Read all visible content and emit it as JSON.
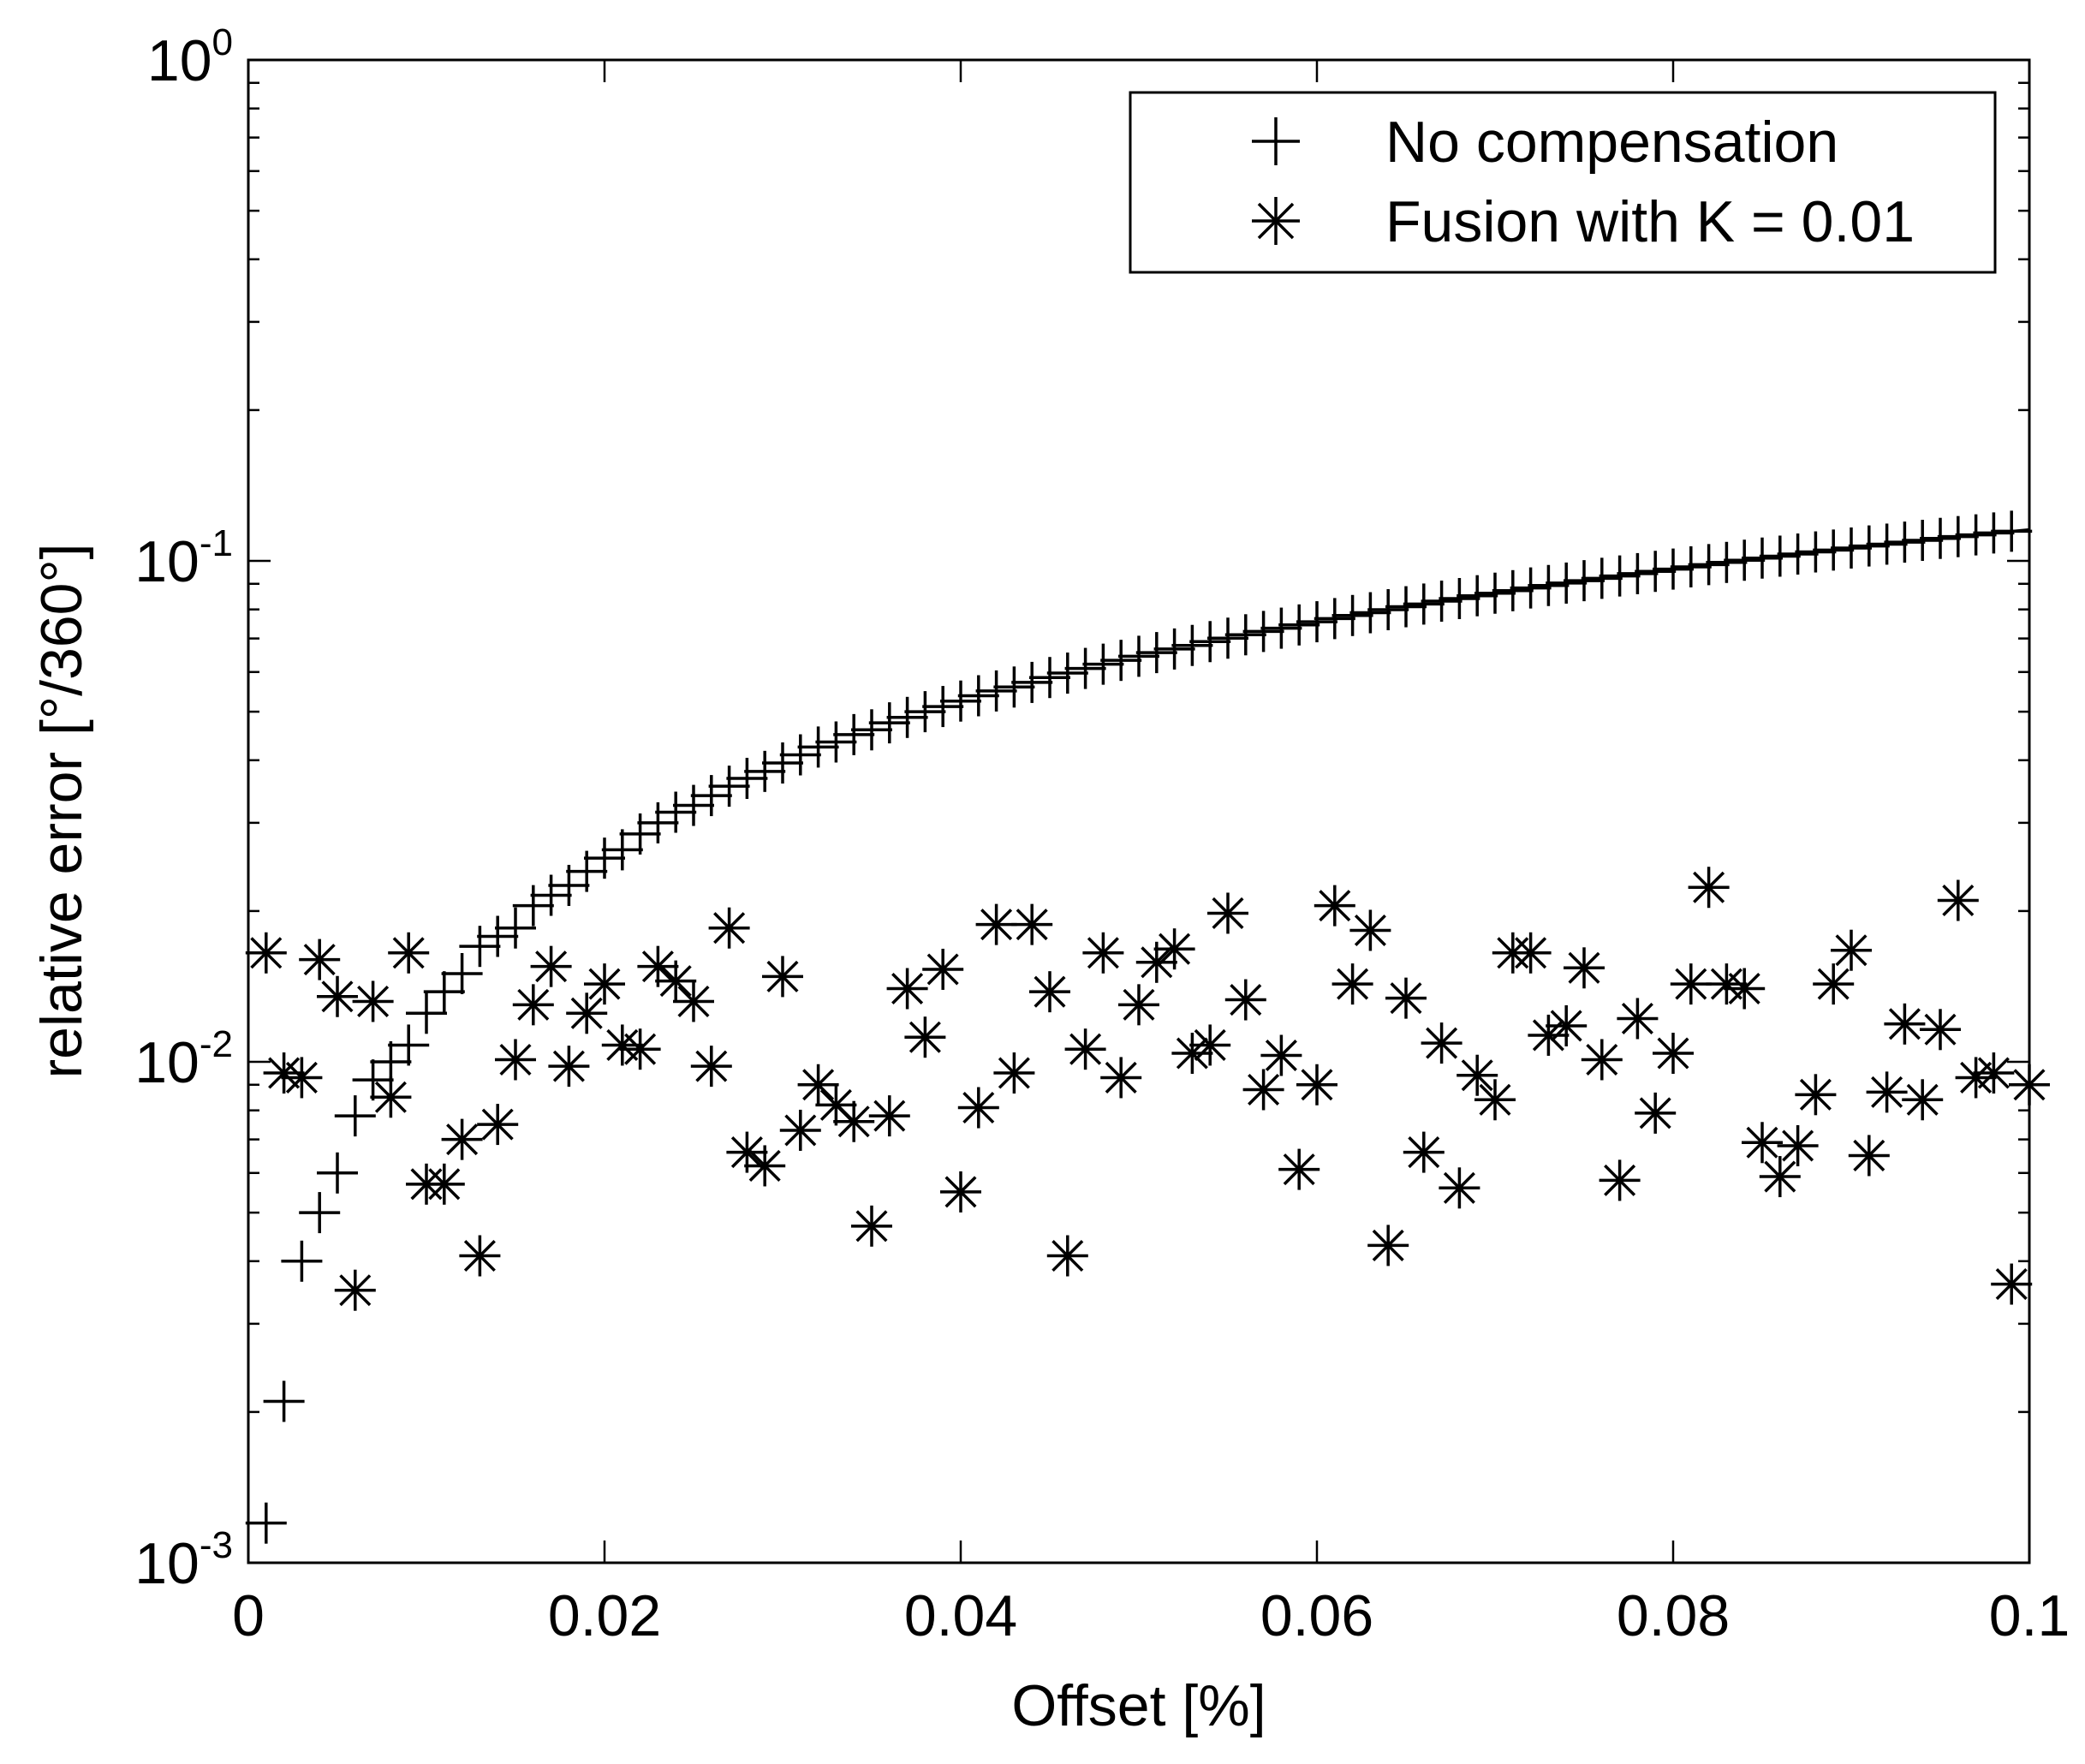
{
  "chart_data": {
    "type": "scatter",
    "title": "",
    "xlabel": "Offset [%]",
    "ylabel": "relative error [°/360°]",
    "xlim": [
      0,
      0.1
    ],
    "ylim": [
      0.001,
      1
    ],
    "yscale": "log",
    "grid": false,
    "legend_position": "top-right",
    "x_ticks": [
      0,
      0.02,
      0.04,
      0.06,
      0.08,
      0.1
    ],
    "x_tick_labels": [
      "0",
      "0.02",
      "0.04",
      "0.06",
      "0.08",
      "0.1"
    ],
    "y_tick_labels": [
      {
        "base": "10",
        "exp": "0"
      },
      {
        "base": "10",
        "exp": "-1"
      },
      {
        "base": "10",
        "exp": "-2"
      },
      {
        "base": "10",
        "exp": "-3"
      }
    ],
    "series": [
      {
        "name": "No compensation",
        "marker": "plus",
        "x": [
          0.001,
          0.002,
          0.003,
          0.004,
          0.005,
          0.006,
          0.007,
          0.008,
          0.009,
          0.01,
          0.011,
          0.012,
          0.013,
          0.014,
          0.015,
          0.016,
          0.017,
          0.018,
          0.019,
          0.02,
          0.021,
          0.022,
          0.023,
          0.024,
          0.025,
          0.026,
          0.027,
          0.028,
          0.029,
          0.03,
          0.031,
          0.032,
          0.033,
          0.034,
          0.035,
          0.036,
          0.037,
          0.038,
          0.039,
          0.04,
          0.041,
          0.042,
          0.043,
          0.044,
          0.045,
          0.046,
          0.047,
          0.048,
          0.049,
          0.05,
          0.051,
          0.052,
          0.053,
          0.054,
          0.055,
          0.056,
          0.057,
          0.058,
          0.059,
          0.06,
          0.061,
          0.062,
          0.063,
          0.064,
          0.065,
          0.066,
          0.067,
          0.068,
          0.069,
          0.07,
          0.071,
          0.072,
          0.073,
          0.074,
          0.075,
          0.076,
          0.077,
          0.078,
          0.079,
          0.08,
          0.081,
          0.082,
          0.083,
          0.084,
          0.085,
          0.086,
          0.087,
          0.088,
          0.089,
          0.09,
          0.091,
          0.092,
          0.093,
          0.094,
          0.095,
          0.096,
          0.097,
          0.098,
          0.099
        ],
        "values": [
          0.0012,
          0.0021,
          0.004,
          0.005,
          0.006,
          0.0078,
          0.0092,
          0.01,
          0.0108,
          0.0125,
          0.0138,
          0.015,
          0.017,
          0.0178,
          0.0185,
          0.0205,
          0.0215,
          0.0225,
          0.024,
          0.0255,
          0.0265,
          0.0285,
          0.03,
          0.0315,
          0.0325,
          0.034,
          0.0355,
          0.0368,
          0.038,
          0.0395,
          0.041,
          0.0425,
          0.0435,
          0.045,
          0.046,
          0.0475,
          0.0487,
          0.05,
          0.0512,
          0.0525,
          0.0538,
          0.055,
          0.056,
          0.0572,
          0.0585,
          0.0597,
          0.061,
          0.0622,
          0.0633,
          0.0645,
          0.0656,
          0.0667,
          0.0678,
          0.069,
          0.0701,
          0.0712,
          0.0723,
          0.0734,
          0.0745,
          0.0756,
          0.0767,
          0.0778,
          0.0788,
          0.0799,
          0.081,
          0.082,
          0.0831,
          0.0841,
          0.0852,
          0.0862,
          0.0872,
          0.0883,
          0.0893,
          0.0903,
          0.0913,
          0.0923,
          0.0933,
          0.0943,
          0.0953,
          0.0963,
          0.0973,
          0.0983,
          0.0993,
          0.1003,
          0.1013,
          0.1022,
          0.1032,
          0.1042,
          0.1051,
          0.1061,
          0.1071,
          0.108,
          0.109,
          0.1099,
          0.1109,
          0.1118,
          0.1127,
          0.1137,
          0.1146
        ]
      },
      {
        "name": "Fusion with K = 0.01",
        "marker": "asterisk",
        "x": [
          0.001,
          0.002,
          0.003,
          0.004,
          0.005,
          0.006,
          0.007,
          0.008,
          0.009,
          0.01,
          0.011,
          0.012,
          0.013,
          0.014,
          0.015,
          0.016,
          0.017,
          0.018,
          0.019,
          0.02,
          0.021,
          0.022,
          0.023,
          0.024,
          0.025,
          0.026,
          0.027,
          0.028,
          0.029,
          0.03,
          0.031,
          0.032,
          0.033,
          0.034,
          0.035,
          0.036,
          0.037,
          0.038,
          0.039,
          0.04,
          0.041,
          0.042,
          0.043,
          0.044,
          0.045,
          0.046,
          0.047,
          0.048,
          0.049,
          0.05,
          0.051,
          0.052,
          0.053,
          0.054,
          0.055,
          0.056,
          0.057,
          0.058,
          0.059,
          0.06,
          0.061,
          0.062,
          0.063,
          0.064,
          0.065,
          0.066,
          0.067,
          0.068,
          0.069,
          0.07,
          0.071,
          0.072,
          0.073,
          0.074,
          0.075,
          0.076,
          0.077,
          0.078,
          0.079,
          0.08,
          0.081,
          0.082,
          0.083,
          0.084,
          0.085,
          0.086,
          0.087,
          0.088,
          0.089,
          0.09,
          0.091,
          0.092,
          0.093,
          0.094,
          0.095,
          0.096,
          0.097,
          0.098,
          0.099,
          0.1
        ],
        "values": [
          0.0165,
          0.0095,
          0.0093,
          0.016,
          0.0135,
          0.0035,
          0.0132,
          0.0085,
          0.0165,
          0.0057,
          0.0057,
          0.007,
          0.0041,
          0.0075,
          0.0101,
          0.013,
          0.0155,
          0.0098,
          0.0125,
          0.0143,
          0.0108,
          0.0106,
          0.0155,
          0.0145,
          0.0132,
          0.0098,
          0.0185,
          0.0066,
          0.0062,
          0.0148,
          0.0073,
          0.009,
          0.0082,
          0.0076,
          0.0047,
          0.0078,
          0.014,
          0.0112,
          0.0153,
          0.0055,
          0.0081,
          0.0188,
          0.0095,
          0.0188,
          0.0138,
          0.0041,
          0.0106,
          0.0165,
          0.0093,
          0.013,
          0.0158,
          0.0168,
          0.0104,
          0.0108,
          0.0198,
          0.0133,
          0.0088,
          0.0103,
          0.0061,
          0.009,
          0.0205,
          0.0143,
          0.0183,
          0.0043,
          0.0134,
          0.0066,
          0.0109,
          0.0056,
          0.0094,
          0.0084,
          0.0165,
          0.0165,
          0.0113,
          0.0118,
          0.0154,
          0.0101,
          0.0058,
          0.0122,
          0.0079,
          0.0104,
          0.0143,
          0.0223,
          0.0143,
          0.014,
          0.0069,
          0.0059,
          0.0068,
          0.0086,
          0.0143,
          0.0167,
          0.0065,
          0.0087,
          0.0119,
          0.0084,
          0.0116,
          0.021,
          0.0093,
          0.0095,
          0.0036,
          0.009
        ]
      }
    ]
  }
}
